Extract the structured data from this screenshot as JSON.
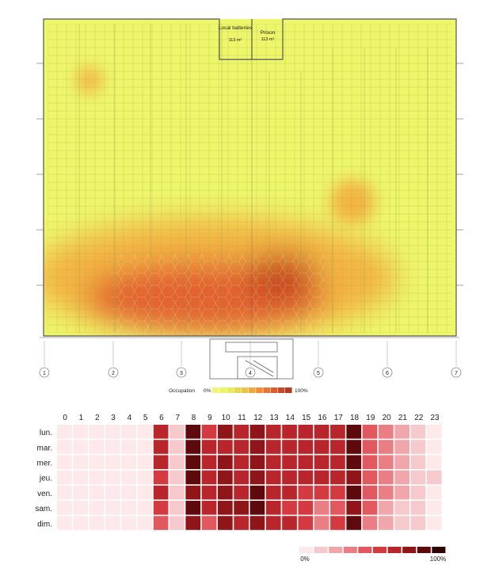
{
  "floorplan": {
    "rooms": [
      {
        "name": "Local batteries",
        "area": "113 m²"
      },
      {
        "name": "Prison",
        "area": "113 m²"
      }
    ],
    "column_labels": [
      "1",
      "2",
      "3",
      "4",
      "5",
      "6",
      "7"
    ],
    "legend": {
      "title": "Occupation",
      "min_label": "0%",
      "max_label": "100%",
      "colors": [
        "#f4f47a",
        "#eef266",
        "#e6ec55",
        "#e8d74a",
        "#eec245",
        "#f0a83e",
        "#ee8e37",
        "#e87531",
        "#dc5e2c",
        "#c84a28",
        "#b23c22"
      ]
    },
    "heat_colors": {
      "base": "#eef66a",
      "warm": "#f4b443",
      "hot": "#e4612d",
      "hottest": "#c8461f"
    }
  },
  "chart_data": {
    "type": "heatmap",
    "title": "",
    "xlabel": "",
    "ylabel": "",
    "x": [
      "0",
      "1",
      "2",
      "3",
      "4",
      "5",
      "6",
      "7",
      "8",
      "9",
      "10",
      "11",
      "12",
      "13",
      "14",
      "15",
      "16",
      "17",
      "18",
      "19",
      "20",
      "21",
      "22",
      "23"
    ],
    "y": [
      "lun.",
      "mar.",
      "mer.",
      "jeu.",
      "ven.",
      "sam.",
      "dim."
    ],
    "values": [
      [
        0.05,
        0.05,
        0.05,
        0.05,
        0.05,
        0.05,
        0.65,
        0.15,
        0.85,
        0.6,
        0.75,
        0.7,
        0.8,
        0.7,
        0.7,
        0.65,
        0.7,
        0.65,
        0.85,
        0.4,
        0.35,
        0.25,
        0.15,
        0.05
      ],
      [
        0.05,
        0.05,
        0.05,
        0.05,
        0.05,
        0.05,
        0.65,
        0.15,
        0.85,
        0.65,
        0.7,
        0.65,
        0.8,
        0.7,
        0.7,
        0.65,
        0.7,
        0.65,
        0.85,
        0.4,
        0.35,
        0.25,
        0.15,
        0.05
      ],
      [
        0.05,
        0.05,
        0.05,
        0.05,
        0.05,
        0.05,
        0.65,
        0.15,
        0.85,
        0.65,
        0.75,
        0.7,
        0.8,
        0.7,
        0.7,
        0.65,
        0.65,
        0.65,
        0.85,
        0.4,
        0.35,
        0.25,
        0.15,
        0.05
      ],
      [
        0.05,
        0.05,
        0.05,
        0.05,
        0.05,
        0.05,
        0.6,
        0.15,
        0.85,
        0.65,
        0.75,
        0.7,
        0.8,
        0.7,
        0.7,
        0.65,
        0.65,
        0.65,
        0.8,
        0.4,
        0.3,
        0.25,
        0.15,
        0.1
      ],
      [
        0.05,
        0.05,
        0.05,
        0.05,
        0.05,
        0.05,
        0.65,
        0.15,
        0.8,
        0.65,
        0.8,
        0.7,
        0.85,
        0.65,
        0.65,
        0.55,
        0.5,
        0.55,
        0.85,
        0.4,
        0.3,
        0.25,
        0.15,
        0.05
      ],
      [
        0.05,
        0.05,
        0.05,
        0.05,
        0.05,
        0.05,
        0.6,
        0.15,
        0.85,
        0.65,
        0.8,
        0.75,
        0.9,
        0.7,
        0.6,
        0.6,
        0.3,
        0.45,
        0.8,
        0.4,
        0.25,
        0.15,
        0.1,
        0.05
      ],
      [
        0.05,
        0.05,
        0.05,
        0.05,
        0.05,
        0.05,
        0.45,
        0.15,
        0.8,
        0.4,
        0.8,
        0.7,
        0.8,
        0.65,
        0.65,
        0.5,
        0.3,
        0.6,
        0.9,
        0.35,
        0.25,
        0.15,
        0.1,
        0.05
      ]
    ],
    "colorscale": [
      "#fde8ea",
      "#f6c9cc",
      "#f0a6aa",
      "#e97e84",
      "#e1585e",
      "#d33b40",
      "#b8262b",
      "#8f1519",
      "#5e0a0c",
      "#2e0405"
    ],
    "legend": {
      "min_label": "0%",
      "max_label": "100%"
    }
  }
}
